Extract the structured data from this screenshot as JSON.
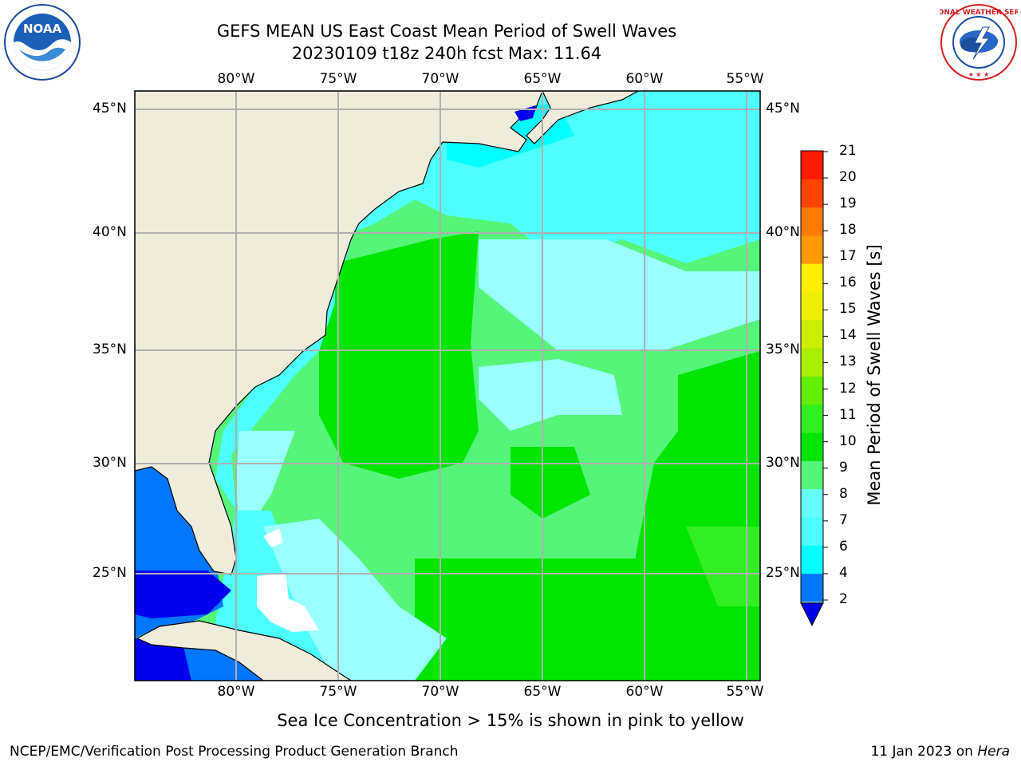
{
  "header": {
    "title_line1": "GEFS MEAN US East Coast Mean Period of Swell Waves",
    "title_line2": "20230109 t18z 240h fcst   Max: 11.64"
  },
  "map": {
    "lon_labels": [
      "80°W",
      "75°W",
      "70°W",
      "65°W",
      "60°W",
      "55°W"
    ],
    "lat_labels": [
      "45°N",
      "40°N",
      "35°N",
      "30°N",
      "25°N"
    ],
    "colors": {
      "land": "#efecdc",
      "grid": "#b0b0b0",
      "coast": "#000000",
      "cyan": "#00ffff",
      "cyan_mid": "#4dffff",
      "pale_cyan": "#99ffff",
      "light_green": "#55f579",
      "green": "#00e600",
      "lime": "#33ee22",
      "blue": "#0077ff",
      "dark_blue": "#0000ee",
      "white": "#ffffff"
    }
  },
  "colorbar": {
    "label": "Mean Period of Swell Waves [s]",
    "ticks": [
      "2",
      "4",
      "6",
      "7",
      "8",
      "9",
      "10",
      "11",
      "12",
      "13",
      "14",
      "15",
      "16",
      "17",
      "18",
      "19",
      "20",
      "21"
    ],
    "colors": [
      "#0077ff",
      "#00ffff",
      "#4dffff",
      "#66ffff",
      "#99ffff",
      "#55f579",
      "#00e600",
      "#33ee22",
      "#66ee00",
      "#aaee00",
      "#ccee00",
      "#eeee00",
      "#ffee00",
      "#ffc000",
      "#ff9900",
      "#ff7a00",
      "#ff4400",
      "#ff1a00",
      "#ff0000"
    ]
  },
  "footer": {
    "note": "Sea Ice Concentration > 15% is shown in pink to yellow",
    "left": "NCEP/EMC/Verification Post Processing Product Generation Branch",
    "right_prefix": "11 Jan 2023 on ",
    "right_machine": "Hera"
  },
  "logos": {
    "noaa_text": "NOAA",
    "nws_text": "NATIONAL WEATHER SERVICE"
  }
}
